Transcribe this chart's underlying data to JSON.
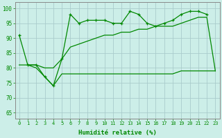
{
  "ylabel_ticks": [
    65,
    70,
    75,
    80,
    85,
    90,
    95,
    100
  ],
  "xlabel": "Humidité relative (%)",
  "bg_color": "#cceee8",
  "grid_color": "#aacccc",
  "line_color": "#008800",
  "xlim": [
    -0.5,
    23.5
  ],
  "ylim": [
    63,
    102
  ],
  "top_x": [
    0,
    1,
    2,
    3,
    4,
    5,
    6,
    7,
    8,
    9,
    10,
    11,
    12,
    13,
    14,
    15,
    16,
    17,
    18,
    19,
    20,
    21,
    22
  ],
  "top_y": [
    91,
    81,
    81,
    77,
    74,
    83,
    98,
    95,
    96,
    96,
    96,
    95,
    95,
    99,
    98,
    95,
    94,
    95,
    96,
    98,
    99,
    99,
    98
  ],
  "mid_x": [
    0,
    1,
    2,
    3,
    4,
    5,
    6,
    7,
    8,
    9,
    10,
    11,
    12,
    13,
    14,
    15,
    16,
    17,
    18,
    19,
    20,
    21,
    22,
    23
  ],
  "mid_y": [
    81,
    81,
    81,
    80,
    80,
    83,
    87,
    88,
    89,
    90,
    91,
    91,
    92,
    92,
    93,
    93,
    94,
    94,
    94,
    95,
    96,
    97,
    97,
    79
  ],
  "bot_x": [
    1,
    2,
    3,
    4,
    5,
    6,
    7,
    8,
    9,
    10,
    11,
    12,
    13,
    14,
    15,
    16,
    17,
    18,
    19,
    20,
    21,
    22,
    23
  ],
  "bot_y": [
    81,
    80,
    77,
    74,
    78,
    78,
    78,
    78,
    78,
    78,
    78,
    78,
    78,
    78,
    78,
    78,
    78,
    78,
    79,
    79,
    79,
    79,
    79
  ]
}
